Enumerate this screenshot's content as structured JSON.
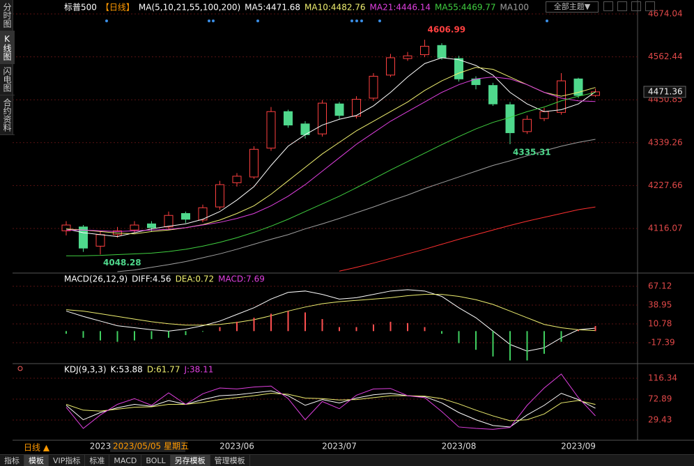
{
  "ui": {
    "tabs": [
      "分时图",
      "K线图",
      "闪电图",
      "合约资料"
    ],
    "theme_button": "全部主题▼",
    "period": "日线 ▲",
    "cursor_date": "2023/05/05 星期五",
    "toolbar": [
      "指标",
      "模板",
      "VIP指标",
      "标准",
      "MACD",
      "BOLL",
      "另存模板",
      "管理模板"
    ]
  },
  "chart_data": [
    {
      "type": "candlestick",
      "symbol": "标普500",
      "period_tag": "【日线】",
      "ma_header": "MA(5,10,21,55,100,200)",
      "ylim": [
        4003.7,
        4674.04
      ],
      "yticks": [
        4116.07,
        4227.66,
        4339.26,
        4450.85,
        4562.44,
        4674.04
      ],
      "grid": true,
      "up_color": "#ff4040",
      "down_color": "#4fd88c",
      "open": [
        4110,
        4120,
        4070,
        4100,
        4112,
        4128,
        4120,
        4155,
        4138,
        4172,
        4235,
        4250,
        4325,
        4420,
        4388,
        4362,
        4440,
        4408,
        4455,
        4515,
        4558,
        4568,
        4592,
        4558,
        4505,
        4488,
        4438,
        4368,
        4402,
        4418,
        4505,
        4462
      ],
      "close": [
        4125,
        4065,
        4100,
        4110,
        4125,
        4118,
        4150,
        4140,
        4170,
        4230,
        4252,
        4322,
        4420,
        4385,
        4360,
        4442,
        4410,
        4452,
        4512,
        4560,
        4565,
        4590,
        4560,
        4505,
        4490,
        4440,
        4365,
        4400,
        4420,
        4500,
        4462,
        4471.36
      ],
      "high": [
        4135,
        4125,
        4110,
        4120,
        4135,
        4135,
        4160,
        4160,
        4178,
        4240,
        4260,
        4330,
        4432,
        4425,
        4395,
        4450,
        4445,
        4460,
        4520,
        4570,
        4575,
        4606.99,
        4598,
        4565,
        4512,
        4495,
        4445,
        4410,
        4430,
        4520,
        4508,
        4480
      ],
      "low": [
        4098,
        4055,
        4048.28,
        4092,
        4105,
        4108,
        4112,
        4130,
        4132,
        4165,
        4225,
        4245,
        4318,
        4378,
        4350,
        4355,
        4400,
        4402,
        4448,
        4510,
        4552,
        4562,
        4555,
        4498,
        4478,
        4435,
        4335.31,
        4362,
        4395,
        4412,
        4455,
        4458
      ],
      "annotations": [
        {
          "value": 4606.99,
          "color": "#ff4040"
        },
        {
          "value": 4335.31,
          "color": "#4fd88c"
        },
        {
          "value": 4048.28,
          "color": "#4fd88c"
        }
      ],
      "series": [
        {
          "name": "MA5:4471.68",
          "color": "#ffffff",
          "values": [
            4115,
            4105,
            4100,
            4095,
            4105,
            4115,
            4122,
            4128,
            4140,
            4160,
            4190,
            4225,
            4280,
            4330,
            4360,
            4385,
            4400,
            4410,
            4435,
            4470,
            4510,
            4545,
            4560,
            4555,
            4540,
            4515,
            4470,
            4440,
            4420,
            4425,
            4440,
            4471.68
          ]
        },
        {
          "name": "MA10:4482.76",
          "color": "#f0f070",
          "values": [
            4115,
            4112,
            4108,
            4104,
            4102,
            4108,
            4112,
            4118,
            4126,
            4138,
            4155,
            4175,
            4205,
            4240,
            4275,
            4310,
            4340,
            4370,
            4395,
            4420,
            4445,
            4475,
            4500,
            4520,
            4535,
            4530,
            4510,
            4490,
            4470,
            4460,
            4470,
            4482.76
          ]
        },
        {
          "name": "MA21:4446.14",
          "color": "#e040e0",
          "values": [
            4112,
            4112,
            4110,
            4108,
            4110,
            4112,
            4114,
            4118,
            4125,
            4132,
            4142,
            4155,
            4175,
            4200,
            4230,
            4265,
            4300,
            4335,
            4365,
            4395,
            4420,
            4445,
            4470,
            4490,
            4505,
            4510,
            4505,
            4490,
            4470,
            4455,
            4448,
            4446.14
          ]
        },
        {
          "name": "MA55:4469.77",
          "color": "#40d040",
          "values": [
            4045,
            4045,
            4046,
            4048,
            4050,
            4052,
            4056,
            4062,
            4070,
            4080,
            4092,
            4106,
            4122,
            4140,
            4160,
            4180,
            4200,
            4222,
            4245,
            4268,
            4290,
            4312,
            4334,
            4355,
            4375,
            4392,
            4405,
            4420,
            4432,
            4448,
            4460,
            4469.77
          ]
        },
        {
          "name": "MA100",
          "color": "#a0a0a0",
          "values": [
            null,
            null,
            null,
            4003.8,
            4008,
            4015,
            4022,
            4030,
            4040,
            4050,
            4062,
            4075,
            4088,
            4100,
            4115,
            4128,
            4142,
            4157,
            4172,
            4188,
            4203,
            4220,
            4235,
            4250,
            4265,
            4280,
            4292,
            4305,
            4318,
            4330,
            4340,
            4348
          ]
        },
        {
          "color": "#ff3030",
          "values": [
            null,
            null,
            null,
            null,
            null,
            null,
            null,
            null,
            null,
            null,
            null,
            null,
            null,
            null,
            null,
            null,
            4005,
            4015,
            4026,
            4038,
            4050,
            4062,
            4075,
            4088,
            4100,
            4112,
            4124,
            4135,
            4145,
            4155,
            4165,
            4172
          ]
        }
      ]
    },
    {
      "type": "macd",
      "title": "MACD(26,12,9)",
      "ylim": [
        -46.6,
        83.8
      ],
      "yticks": [
        -17.39,
        10.78,
        38.95,
        67.12
      ],
      "grid": true,
      "series": [
        {
          "name": "DIFF:4.56",
          "color": "#ffffff",
          "values": [
            30,
            22,
            15,
            8,
            5,
            2,
            0,
            3,
            8,
            15,
            25,
            35,
            48,
            58,
            60,
            55,
            48,
            50,
            55,
            60,
            62,
            60,
            52,
            35,
            20,
            0,
            -20,
            -30,
            -25,
            -10,
            2,
            4.56
          ]
        },
        {
          "name": "DEA:0.72",
          "color": "#f0f070",
          "values": [
            32,
            30,
            26,
            22,
            18,
            14,
            11,
            9,
            9,
            10,
            13,
            17,
            23,
            30,
            36,
            41,
            44,
            46,
            48,
            50,
            53,
            55,
            55,
            52,
            47,
            40,
            30,
            20,
            10,
            5,
            2,
            0.72
          ]
        },
        {
          "name": "MACD:7.69",
          "color": "#e040e0",
          "kind": "bar",
          "up_color": "#ff5050",
          "down_color": "#40d060",
          "values": [
            -4,
            -10,
            -14,
            -16,
            -14,
            -12,
            -10,
            -6,
            -1,
            6,
            14,
            20,
            26,
            30,
            28,
            18,
            6,
            6,
            10,
            14,
            12,
            6,
            -4,
            -18,
            -28,
            -38,
            -44,
            -44,
            -34,
            -16,
            2,
            7.69
          ]
        }
      ]
    },
    {
      "type": "line",
      "title": "KDJ(9,3,3)",
      "ylim": [
        -6.8,
        142.4
      ],
      "yticks": [
        29.43,
        72.89,
        116.34
      ],
      "grid": true,
      "categories": [
        null,
        null,
        "2023",
        null,
        null,
        null,
        null,
        null,
        null,
        null,
        "2023/06",
        null,
        null,
        null,
        null,
        null,
        "2023/07",
        null,
        null,
        null,
        null,
        null,
        null,
        "2023/08",
        null,
        null,
        null,
        null,
        null,
        null,
        "2023/09",
        null
      ],
      "series": [
        {
          "name": "K:53.88",
          "color": "#ffffff",
          "values": [
            60,
            30,
            45,
            55,
            62,
            58,
            70,
            62,
            72,
            80,
            82,
            86,
            90,
            80,
            60,
            72,
            65,
            75,
            82,
            85,
            80,
            78,
            65,
            45,
            30,
            18,
            15,
            40,
            60,
            85,
            72,
            53.88
          ]
        },
        {
          "name": "D:61.77",
          "color": "#f0f070",
          "values": [
            62,
            50,
            48,
            52,
            56,
            57,
            62,
            62,
            66,
            72,
            76,
            80,
            85,
            83,
            75,
            74,
            71,
            72,
            76,
            80,
            80,
            79,
            74,
            63,
            50,
            38,
            28,
            30,
            42,
            65,
            70,
            61.77
          ]
        },
        {
          "name": "J:38.11",
          "color": "#e040e0",
          "values": [
            56,
            12,
            40,
            62,
            74,
            60,
            86,
            62,
            84,
            96,
            94,
            98,
            100,
            74,
            30,
            68,
            53,
            81,
            94,
            95,
            80,
            76,
            47,
            15,
            12,
            10,
            14,
            60,
            96,
            125,
            76,
            38.11
          ]
        }
      ]
    }
  ]
}
